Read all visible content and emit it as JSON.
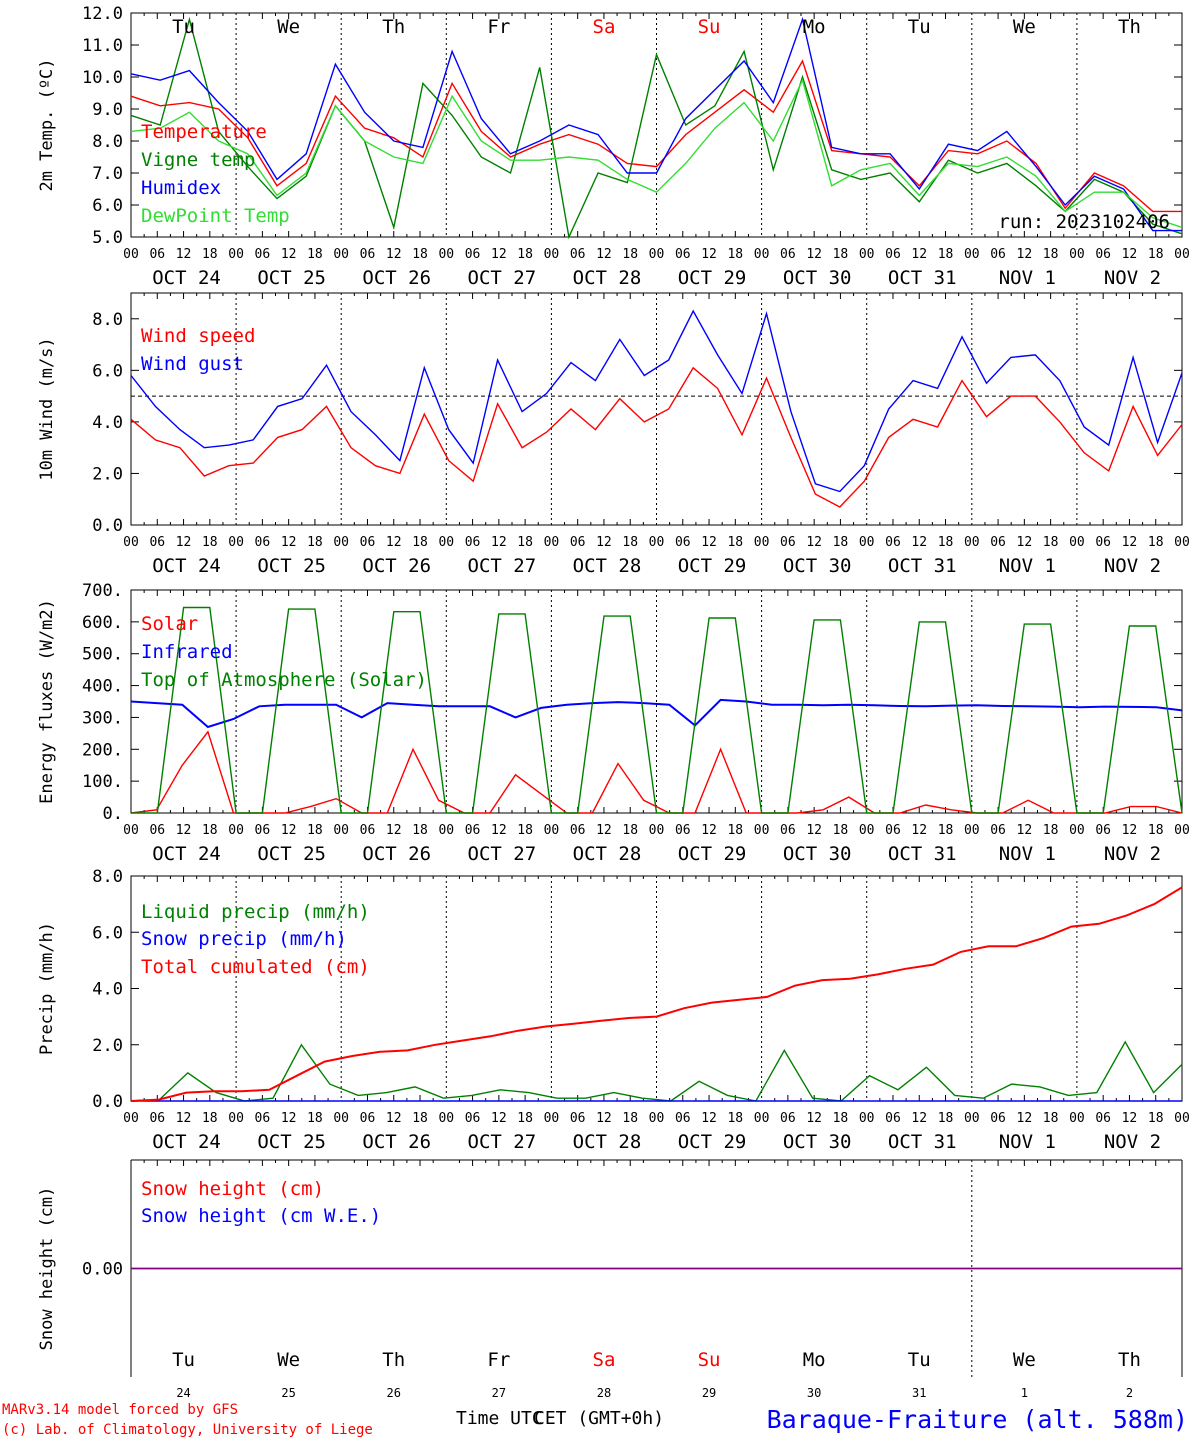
{
  "colors": {
    "red": "#ff0000",
    "darkgreen": "#008000",
    "blue": "#0000ff",
    "lightgreen": "#33dd33",
    "purple": "#800080",
    "black": "#000000"
  },
  "hour_ticks": [
    "00",
    "06",
    "12",
    "18"
  ],
  "final_tick": "00",
  "top_days": [
    {
      "label": "Tu",
      "color": "#000000"
    },
    {
      "label": "We",
      "color": "#000000"
    },
    {
      "label": "Th",
      "color": "#000000"
    },
    {
      "label": "Fr",
      "color": "#000000"
    },
    {
      "label": "Sa",
      "color": "#ff0000"
    },
    {
      "label": "Su",
      "color": "#ff0000"
    },
    {
      "label": "Mo",
      "color": "#000000"
    },
    {
      "label": "Tu",
      "color": "#000000"
    },
    {
      "label": "We",
      "color": "#000000"
    },
    {
      "label": "Th",
      "color": "#000000"
    }
  ],
  "date_labels": [
    "OCT 24",
    "OCT 25",
    "OCT 26",
    "OCT 27",
    "OCT 28",
    "OCT 29",
    "OCT 30",
    "OCT 31",
    "NOV  1",
    "NOV  2"
  ],
  "bottom_day_numbers": [
    "24",
    "25",
    "26",
    "27",
    "28",
    "29",
    "30",
    "31",
    "1",
    "2"
  ],
  "footer": {
    "model": "MARv3.14 model forced by GFS",
    "lab": "(c) Lab. of Climatology, University of Liege",
    "xlabel_a": "Time UTC",
    "xlabel_b": "CET (GMT+0h)",
    "station": "Baraque-Fraiture (alt. 588m)"
  },
  "chart_data": [
    {
      "type": "line",
      "ylabel": "2m Temp. (ºC)",
      "ylim": [
        5,
        12
      ],
      "yticks": [
        "5.0",
        "6.0",
        "7.0",
        "8.0",
        "9.0",
        "10.0",
        "11.0",
        "12.0"
      ],
      "annotation": "run: 2023102406",
      "legend_placement": "left",
      "x_step_hours": 6,
      "series": [
        {
          "name": "Temperature",
          "color": "#ff0000",
          "values": [
            9.4,
            9.1,
            9.2,
            9.0,
            8.1,
            6.6,
            7.3,
            9.4,
            8.4,
            8.1,
            7.5,
            9.8,
            8.3,
            7.5,
            7.9,
            8.2,
            7.9,
            7.3,
            7.2,
            8.2,
            8.9,
            9.6,
            8.9,
            10.5,
            7.7,
            7.6,
            7.5,
            6.6,
            7.7,
            7.6,
            8.0,
            7.3,
            5.9,
            7.0,
            6.6,
            5.8,
            5.8
          ]
        },
        {
          "name": "Vigne temp",
          "color": "#008000",
          "values": [
            8.8,
            8.5,
            11.8,
            8.3,
            7.2,
            6.2,
            6.9,
            9.1,
            8.0,
            5.3,
            9.8,
            8.8,
            7.5,
            7.0,
            10.3,
            5.0,
            7.0,
            6.7,
            10.7,
            8.5,
            9.1,
            10.8,
            7.1,
            10.0,
            7.1,
            6.8,
            7.0,
            6.1,
            7.4,
            7.0,
            7.3,
            6.6,
            5.8,
            6.8,
            6.4,
            5.4,
            5.1
          ]
        },
        {
          "name": "Humidex",
          "color": "#0000ff",
          "values": [
            10.1,
            9.9,
            10.2,
            9.2,
            8.3,
            6.8,
            7.6,
            10.4,
            8.9,
            8.0,
            7.8,
            10.8,
            8.7,
            7.6,
            8.0,
            8.5,
            8.2,
            7.0,
            7.0,
            8.7,
            9.6,
            10.5,
            9.2,
            11.8,
            7.8,
            7.6,
            7.6,
            6.5,
            7.9,
            7.7,
            8.3,
            7.2,
            6.0,
            6.9,
            6.5,
            5.2,
            5.2
          ]
        },
        {
          "name": "DewPoint Temp",
          "color": "#33dd33",
          "values": [
            8.3,
            8.4,
            8.9,
            8.0,
            7.6,
            6.3,
            7.0,
            9.1,
            8.0,
            7.5,
            7.3,
            9.4,
            8.0,
            7.4,
            7.4,
            7.5,
            7.4,
            6.8,
            6.4,
            7.3,
            8.4,
            9.2,
            8.0,
            9.9,
            6.6,
            7.1,
            7.3,
            6.3,
            7.3,
            7.2,
            7.5,
            6.9,
            5.8,
            6.4,
            6.4,
            5.6,
            5.3
          ]
        }
      ]
    },
    {
      "type": "line",
      "ylabel": "10m Wind (m/s)",
      "ylim": [
        0,
        9
      ],
      "yticks": [
        "0.0",
        "2.0",
        "4.0",
        "6.0",
        "8.0"
      ],
      "dashed_reference": 5.0,
      "legend_placement": "left",
      "x_step_hours": 6,
      "series": [
        {
          "name": "Wind speed",
          "color": "#ff0000",
          "values": [
            4.1,
            3.3,
            3.0,
            1.9,
            2.3,
            2.4,
            3.4,
            3.7,
            4.6,
            3.0,
            2.3,
            2.0,
            4.3,
            2.5,
            1.7,
            4.7,
            3.0,
            3.6,
            4.5,
            3.7,
            4.9,
            4.0,
            4.5,
            6.1,
            5.3,
            3.5,
            5.7,
            3.4,
            1.2,
            0.7,
            1.7,
            3.4,
            4.1,
            3.8,
            5.6,
            4.2,
            5.0,
            5.0,
            4.0,
            2.8,
            2.1,
            4.6,
            2.7,
            3.9
          ]
        },
        {
          "name": "Wind gust",
          "color": "#0000ff",
          "values": [
            5.8,
            4.6,
            3.7,
            3.0,
            3.1,
            3.3,
            4.6,
            4.9,
            6.2,
            4.4,
            3.5,
            2.5,
            6.1,
            3.7,
            2.4,
            6.4,
            4.4,
            5.1,
            6.3,
            5.6,
            7.2,
            5.8,
            6.4,
            8.3,
            6.6,
            5.1,
            8.2,
            4.4,
            1.6,
            1.3,
            2.3,
            4.5,
            5.6,
            5.3,
            7.3,
            5.5,
            6.5,
            6.6,
            5.6,
            3.8,
            3.1,
            6.5,
            3.2,
            5.9
          ]
        }
      ]
    },
    {
      "type": "line",
      "ylabel": "Energy fluxes (W/m2)",
      "ylim": [
        0,
        700
      ],
      "yticks": [
        "0.",
        "100.",
        "200.",
        "300.",
        "400.",
        "500.",
        "600.",
        "700."
      ],
      "legend_placement": "left",
      "x_step_hours": 6,
      "series": [
        {
          "name": "Solar",
          "color": "#ff0000",
          "values": [
            0,
            10,
            150,
            255,
            0,
            0,
            0,
            20,
            45,
            0,
            0,
            200,
            40,
            0,
            0,
            120,
            60,
            0,
            0,
            155,
            40,
            0,
            0,
            200,
            0,
            0,
            0,
            10,
            50,
            0,
            0,
            25,
            10,
            0,
            0,
            40,
            0,
            0,
            0,
            20,
            20,
            0
          ]
        },
        {
          "name": "Infrared",
          "color": "#0000ff",
          "values": [
            350,
            345,
            340,
            270,
            295,
            335,
            340,
            340,
            340,
            300,
            345,
            340,
            335,
            335,
            335,
            300,
            330,
            340,
            345,
            348,
            345,
            340,
            275,
            355,
            350,
            340,
            340,
            338,
            340,
            338,
            336,
            335,
            337,
            338,
            336,
            335,
            334,
            332,
            334,
            333,
            332,
            322
          ]
        },
        {
          "name": "Top of Atmosphere (Solar)",
          "color": "#008000",
          "values": [
            0,
            0,
            645,
            645,
            0,
            0,
            640,
            640,
            0,
            0,
            632,
            632,
            0,
            0,
            625,
            625,
            0,
            0,
            618,
            618,
            0,
            0,
            612,
            612,
            0,
            0,
            606,
            606,
            0,
            0,
            600,
            600,
            0,
            0,
            593,
            593,
            0,
            0,
            587,
            587,
            0
          ]
        }
      ]
    },
    {
      "type": "line",
      "ylabel": "Precip (mm/h)",
      "ylim": [
        0,
        8
      ],
      "yticks": [
        "0.0",
        "2.0",
        "4.0",
        "6.0",
        "8.0"
      ],
      "legend_placement": "left",
      "x_step_hours": 6,
      "series": [
        {
          "name": "Liquid precip (mm/h)",
          "color": "#008000",
          "values": [
            0.0,
            0.05,
            1.0,
            0.3,
            0.0,
            0.1,
            2.0,
            0.6,
            0.2,
            0.3,
            0.5,
            0.1,
            0.2,
            0.4,
            0.3,
            0.1,
            0.1,
            0.3,
            0.1,
            0.0,
            0.7,
            0.2,
            0.0,
            1.8,
            0.1,
            0.0,
            0.9,
            0.4,
            1.2,
            0.2,
            0.1,
            0.6,
            0.5,
            0.2,
            0.3,
            2.1,
            0.3,
            1.3
          ]
        },
        {
          "name": "Snow precip (mm/h)",
          "color": "#0000ff",
          "values": [
            0,
            0,
            0,
            0,
            0,
            0,
            0,
            0,
            0,
            0,
            0,
            0,
            0,
            0,
            0,
            0,
            0,
            0,
            0,
            0,
            0,
            0,
            0,
            0,
            0,
            0,
            0,
            0,
            0,
            0,
            0,
            0,
            0,
            0,
            0,
            0,
            0,
            0
          ]
        },
        {
          "name": "Total cumulated (cm)",
          "color": "#ff0000",
          "values": [
            0.0,
            0.05,
            0.3,
            0.35,
            0.35,
            0.4,
            0.9,
            1.4,
            1.6,
            1.75,
            1.8,
            2.0,
            2.15,
            2.3,
            2.5,
            2.65,
            2.75,
            2.85,
            2.95,
            3.0,
            3.3,
            3.5,
            3.6,
            3.7,
            4.1,
            4.3,
            4.35,
            4.5,
            4.7,
            4.85,
            5.3,
            5.5,
            5.5,
            5.8,
            6.2,
            6.3,
            6.6,
            7.0,
            7.6
          ]
        }
      ]
    },
    {
      "type": "line",
      "ylabel": "Snow height (cm)",
      "ylim": [
        -1,
        1
      ],
      "yticks": [
        "0.00"
      ],
      "legend_placement": "left",
      "x_step_hours": 6,
      "series": [
        {
          "name": "Snow height (cm)",
          "color": "#ff0000",
          "values": [
            0,
            0
          ]
        },
        {
          "name": "Snow height (cm W.E.)",
          "color": "#0000ff",
          "values": [
            0,
            0
          ]
        }
      ]
    }
  ]
}
